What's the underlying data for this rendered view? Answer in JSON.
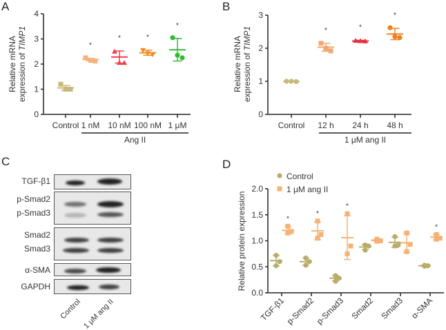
{
  "panels": {
    "a": "A",
    "b": "B",
    "c": "C",
    "d": "D"
  },
  "chart_data": [
    {
      "id": "A",
      "type": "scatter",
      "ylabel_line1": "Relative mRNA",
      "ylabel_line2_prefix": "expression of ",
      "ylabel_gene": "TIMP1",
      "ylim": [
        0,
        4
      ],
      "yticks": [
        "0",
        "1",
        "2",
        "3",
        "4"
      ],
      "categories": [
        "Control",
        "1 nM",
        "10 nM",
        "100 nM",
        "1 μM"
      ],
      "group_label": "Ang II",
      "colors": [
        "#c9b87c",
        "#f5b37e",
        "#ef3e4c",
        "#f5891f",
        "#2fbd2f"
      ],
      "points": [
        [
          1.2,
          1.0,
          1.0
        ],
        [
          2.25,
          2.15,
          2.12
        ],
        [
          2.5,
          2.05,
          2.05
        ],
        [
          2.55,
          2.42,
          2.38
        ],
        [
          3.05,
          2.35,
          2.25
        ]
      ],
      "mean": [
        1.05,
        2.18,
        2.28,
        2.45,
        2.57
      ],
      "sd": [
        0.1,
        0.05,
        0.24,
        0.1,
        0.45
      ],
      "significance": [
        "",
        "*",
        "*",
        "*",
        "*"
      ]
    },
    {
      "id": "B",
      "type": "scatter",
      "ylabel_line1": "Relative mRNA",
      "ylabel_line2_prefix": "expression of ",
      "ylabel_gene": "TIMP1",
      "ylim": [
        0,
        3
      ],
      "yticks": [
        "0",
        "1",
        "2",
        "3"
      ],
      "categories": [
        "Control",
        "12 h",
        "24 h",
        "48 h"
      ],
      "group_label": "1 μM ang II",
      "colors": [
        "#c9b87c",
        "#f0a872",
        "#e8303f",
        "#f07f1e"
      ],
      "points": [
        [
          1.0,
          1.0,
          0.99
        ],
        [
          2.15,
          2.0,
          1.92
        ],
        [
          2.23,
          2.22,
          2.21
        ],
        [
          2.62,
          2.35,
          2.32
        ]
      ],
      "mean": [
        1.0,
        2.03,
        2.22,
        2.43
      ],
      "sd": [
        0.01,
        0.12,
        0.02,
        0.17
      ],
      "significance": [
        "",
        "*",
        "*",
        "*"
      ]
    },
    {
      "id": "D",
      "type": "scatter",
      "ylabel": "Relative protein expression",
      "ylim": [
        0,
        2.0
      ],
      "yticks": [
        "0.0",
        "0.5",
        "1.0",
        "1.5",
        "2.0"
      ],
      "categories": [
        "TGF-β1",
        "p-Smad2",
        "p-Smad3",
        "Smad2",
        "Smad3",
        "α-SMA"
      ],
      "legend_position": "top-left",
      "series": [
        {
          "name": "Control",
          "color": "#b9ad6a",
          "marker": "circle",
          "points": [
            [
              0.72,
              0.6,
              0.52
            ],
            [
              0.67,
              0.6,
              0.53
            ],
            [
              0.33,
              0.28,
              0.22
            ],
            [
              0.92,
              0.9,
              0.82
            ],
            [
              1.08,
              0.92,
              0.9
            ],
            [
              0.53,
              0.52,
              0.51
            ]
          ],
          "mean": [
            0.62,
            0.6,
            0.28,
            0.88,
            0.97,
            0.52
          ],
          "sd": [
            0.1,
            0.07,
            0.05,
            0.05,
            0.1,
            0.01
          ]
        },
        {
          "name": "1 μM ang II",
          "color": "#f5b273",
          "marker": "square",
          "points": [
            [
              1.28,
              1.18,
              1.15
            ],
            [
              1.38,
              1.12,
              1.05
            ],
            [
              1.52,
              0.9,
              0.75
            ],
            [
              1.03,
              1.0,
              0.99
            ],
            [
              1.15,
              0.93,
              0.79
            ],
            [
              1.12,
              1.05,
              1.03
            ]
          ],
          "mean": [
            1.2,
            1.19,
            1.06,
            1.01,
            0.96,
            1.07
          ],
          "sd": [
            0.07,
            0.17,
            0.42,
            0.02,
            0.18,
            0.05
          ],
          "significance": [
            "*",
            "*",
            "*",
            "",
            "",
            "*"
          ]
        }
      ]
    }
  ],
  "blot": {
    "labels": [
      "TGF-β1",
      "p-Smad2",
      "p-Smad3",
      "Smad2",
      "Smad3",
      "α-SMA",
      "GAPDH"
    ],
    "lanes": [
      "Control",
      "1 μM ang II"
    ]
  }
}
